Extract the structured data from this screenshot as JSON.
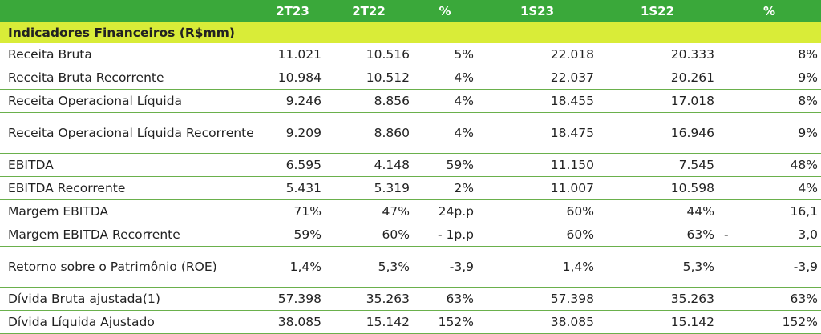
{
  "header": [
    "",
    "2T23",
    "2T22",
    "%",
    "1S23",
    "1S22",
    "%"
  ],
  "section_title": "Indicadores Financeiros (R$mm)",
  "rows": [
    {
      "label": "Receita Bruta",
      "values": [
        "11.021",
        "10.516",
        "5%",
        "22.018",
        "20.333",
        "8%"
      ]
    },
    {
      "label": "Receita Bruta Recorrente",
      "values": [
        "10.984",
        "10.512",
        "4%",
        "22.037",
        "20.261",
        "9%"
      ]
    },
    {
      "label": "Receita Operacional Líquida",
      "values": [
        "9.246",
        "8.856",
        "4%",
        "18.455",
        "17.018",
        "8%"
      ]
    },
    {
      "label": "Receita Operacional Líquida Recorrente",
      "values": [
        "9.209",
        "8.860",
        "4%",
        "18.475",
        "16.946",
        "9%"
      ]
    },
    {
      "label": "EBITDA",
      "values": [
        "6.595",
        "4.148",
        "59%",
        "11.150",
        "7.545",
        "48%"
      ]
    },
    {
      "label": "EBITDA Recorrente",
      "values": [
        "5.431",
        "5.319",
        "2%",
        "11.007",
        "10.598",
        "4%"
      ]
    },
    {
      "label": "Margem EBITDA",
      "values": [
        "71%",
        "47%",
        "24p.p",
        "60%",
        "44%",
        "16,1"
      ]
    },
    {
      "label": "Margem EBITDA Recorrente",
      "values": [
        "59%",
        "60%",
        "- 1p.p",
        "60%",
        "63%",
        "3,0"
      ],
      "last_prefix": "-"
    },
    {
      "label": "Retorno sobre o Patrimônio (ROE)",
      "values": [
        "1,4%",
        "5,3%",
        "-3,9",
        "1,4%",
        "5,3%",
        "-3,9"
      ]
    },
    {
      "label": "Dívida Bruta ajustada(1)",
      "values": [
        "57.398",
        "35.263",
        "63%",
        "57.398",
        "35.263",
        "63%"
      ]
    },
    {
      "label": "Dívida Líquida Ajustado",
      "values": [
        "38.085",
        "15.142",
        "152%",
        "38.085",
        "15.142",
        "152%"
      ]
    }
  ]
}
